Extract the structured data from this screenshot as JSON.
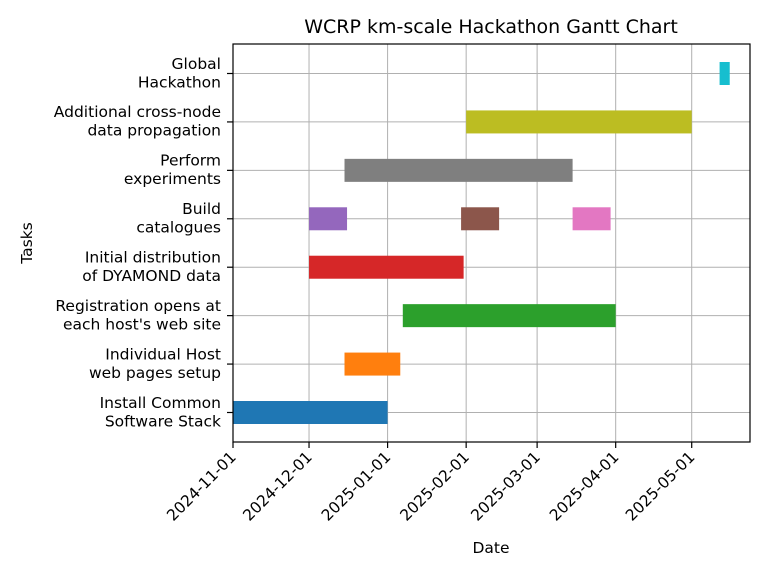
{
  "chart_data": {
    "type": "gantt",
    "title": "WCRP km-scale Hackathon Gantt Chart",
    "xlabel": "Date",
    "ylabel": "Tasks",
    "xlim": [
      "2024-11-01",
      "2025-05-24"
    ],
    "x_ticks": [
      "2024-11-01",
      "2024-12-01",
      "2025-01-01",
      "2025-02-01",
      "2025-03-01",
      "2025-04-01",
      "2025-05-01"
    ],
    "grid": true,
    "tasks": [
      {
        "label": [
          "Install Common",
          "Software Stack"
        ],
        "bars": [
          {
            "start": "2024-11-01",
            "end": "2025-01-01",
            "color": "#1f77b4"
          }
        ]
      },
      {
        "label": [
          "Individual Host",
          "web pages setup"
        ],
        "bars": [
          {
            "start": "2024-12-15",
            "end": "2025-01-06",
            "color": "#ff7f0e"
          }
        ]
      },
      {
        "label": [
          "Registration opens at",
          "each host's web site"
        ],
        "bars": [
          {
            "start": "2025-01-07",
            "end": "2025-04-01",
            "color": "#2ca02c"
          }
        ]
      },
      {
        "label": [
          "Initial distribution",
          "of DYAMOND data"
        ],
        "bars": [
          {
            "start": "2024-12-01",
            "end": "2025-01-31",
            "color": "#d62728"
          }
        ]
      },
      {
        "label": [
          "Build",
          "catalogues"
        ],
        "bars": [
          {
            "start": "2024-12-01",
            "end": "2024-12-16",
            "color": "#9467bd"
          },
          {
            "start": "2025-01-30",
            "end": "2025-02-14",
            "color": "#8c564b"
          },
          {
            "start": "2025-03-15",
            "end": "2025-03-30",
            "color": "#e377c2"
          }
        ]
      },
      {
        "label": [
          "Perform",
          "experiments"
        ],
        "bars": [
          {
            "start": "2024-12-15",
            "end": "2025-03-15",
            "color": "#7f7f7f"
          }
        ]
      },
      {
        "label": [
          "Additional cross-node",
          "data propagation"
        ],
        "bars": [
          {
            "start": "2025-02-01",
            "end": "2025-05-01",
            "color": "#bcbd22"
          }
        ]
      },
      {
        "label": [
          "Global",
          "Hackathon"
        ],
        "bars": [
          {
            "start": "2025-05-12",
            "end": "2025-05-16",
            "color": "#17becf"
          }
        ]
      }
    ]
  }
}
